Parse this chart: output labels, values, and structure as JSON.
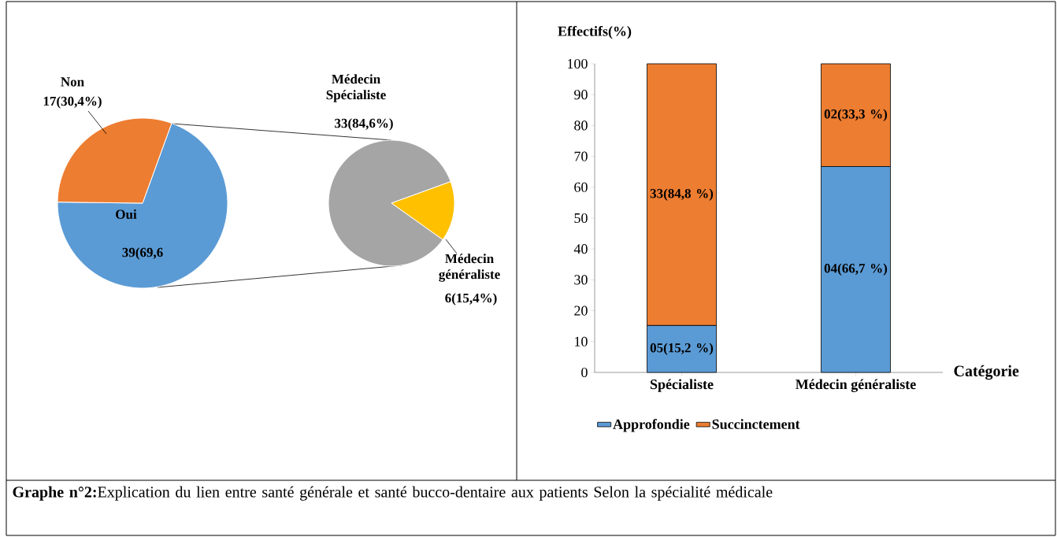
{
  "chart_data": [
    {
      "type": "pie",
      "categories": [
        "Oui",
        "Non"
      ],
      "values": [
        39,
        17
      ],
      "colors": [
        "#5b9bd5",
        "#ed7d31"
      ],
      "value_labels": [
        "39(69,6",
        "17(30,4%)"
      ],
      "annotations": [
        "**Graphe n°2:**Explication du lien entre santé générale et santé bucco-dentaire aux patients Selon la spécialité médicale"
      ]
    },
    {
      "type": "pie",
      "categories": [
        "Médecin Spécialiste",
        "Médecin généraliste"
      ],
      "values": [
        33,
        6
      ],
      "colors": [
        "#a5a5a5",
        "#ffc000"
      ],
      "value_labels": [
        "33(84,6%)",
        "6(15,4%)"
      ]
    },
    {
      "type": "bar",
      "stacked": true,
      "categories": [
        "Spécialiste",
        "Médecin généraliste"
      ],
      "xlabel": "Catégorie",
      "ylabel": "Effectifs(%)",
      "ylim": [
        0,
        100
      ],
      "yticks": [
        0,
        10,
        20,
        30,
        40,
        50,
        60,
        70,
        80,
        90,
        100
      ],
      "legend": "bottom",
      "series": [
        {
          "name": "Approfondie",
          "color": "#5b9bd5",
          "values": [
            15.2,
            66.7
          ],
          "value_labels": [
            "05(15,2 %)",
            "04(66,7 %)"
          ]
        },
        {
          "name": "Succinctement",
          "color": "#ed7d31",
          "values": [
            84.8,
            33.3
          ],
          "value_labels": [
            "33(84,8 %)",
            "02(33,3 %)"
          ]
        }
      ]
    }
  ]
}
